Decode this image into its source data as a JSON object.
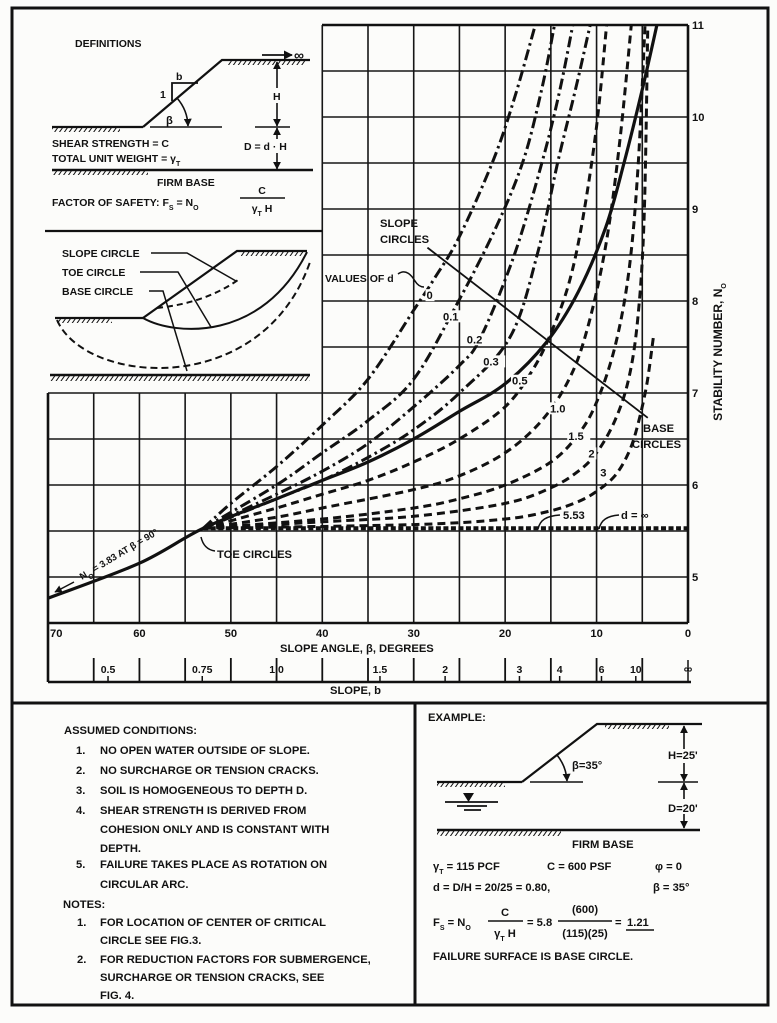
{
  "definitions": {
    "title": "DEFINITIONS",
    "b": "b",
    "one": "1",
    "beta": "β",
    "infinity": "∞",
    "H": "H",
    "depth": "D = d · H",
    "shear_strength": "SHEAR STRENGTH = C",
    "unit_weight": "TOTAL UNIT WEIGHT = γ",
    "unit_weight_sub": "T",
    "firm_base": "FIRM BASE",
    "factor_of_safety": "FACTOR OF SAFETY: F",
    "fs_sub": "S",
    "fs_eq": " = N",
    "n_sub": "O",
    "fraction_num": "C",
    "fraction_den": "γ",
    "fraction_den_sub": "T",
    "fraction_den_tail": " H"
  },
  "circle_types": {
    "slope_circle": "SLOPE CIRCLE",
    "toe_circle": "TOE CIRCLE",
    "base_circle": "BASE CIRCLE"
  },
  "chart_data": {
    "type": "line",
    "xlabel": "SLOPE ANGLE, β, DEGREES",
    "secondary_xlabel": "SLOPE, b",
    "ylabel": "STABILITY NUMBER, N",
    "ylabel_sub": "O",
    "xlim": [
      70,
      0
    ],
    "ylim": [
      4.5,
      11
    ],
    "x_ticks": [
      70,
      60,
      50,
      40,
      30,
      20,
      10,
      0
    ],
    "y_ticks": [
      5,
      6,
      7,
      8,
      9,
      10,
      11
    ],
    "secondary_x_ticks": [
      {
        "label": "0.5",
        "b": 0.5
      },
      {
        "label": "0.75",
        "b": 0.75
      },
      {
        "label": "1.0",
        "b": 1.0
      },
      {
        "label": "1.5",
        "b": 1.5
      },
      {
        "label": "2",
        "b": 2
      },
      {
        "label": "3",
        "b": 3
      },
      {
        "label": "4",
        "b": 4
      },
      {
        "label": "6",
        "b": 6
      },
      {
        "label": "10",
        "b": 10
      },
      {
        "label": "∞",
        "b": null
      }
    ],
    "grid": {
      "on": true,
      "x_step": 5,
      "y_step": 0.5
    },
    "legend_title": "VALUES OF d",
    "series": [
      {
        "name": "Toe circles",
        "label": "",
        "style": "solid",
        "points": [
          [
            70,
            4.77
          ],
          [
            60,
            5.15
          ],
          [
            53,
            5.53
          ],
          [
            45,
            5.85
          ],
          [
            40,
            6.05
          ],
          [
            35,
            6.25
          ],
          [
            30,
            6.5
          ],
          [
            25,
            6.8
          ],
          [
            20,
            7.1
          ],
          [
            15.5,
            7.55
          ],
          [
            12,
            8.1
          ],
          [
            9,
            8.8
          ],
          [
            7,
            9.5
          ],
          [
            5,
            10.3
          ],
          [
            3.4,
            11
          ]
        ]
      },
      {
        "name": "d = 0",
        "label": "0",
        "style": "dashdot",
        "label_at": [
          28.6,
          8.02
        ],
        "points": [
          [
            53,
            5.53
          ],
          [
            50,
            5.8
          ],
          [
            45,
            6.2
          ],
          [
            40,
            6.65
          ],
          [
            35,
            7.15
          ],
          [
            30,
            7.9
          ],
          [
            27.7,
            8.25
          ],
          [
            25,
            8.7
          ],
          [
            21.3,
            9.53
          ],
          [
            19,
            10.2
          ],
          [
            16.7,
            11
          ]
        ]
      },
      {
        "name": "d = 0.1",
        "label": "0.1",
        "style": "dashdot",
        "label_at": [
          26.8,
          7.79
        ],
        "points": [
          [
            53,
            5.53
          ],
          [
            45,
            6.0
          ],
          [
            40,
            6.35
          ],
          [
            35,
            6.7
          ],
          [
            30,
            7.15
          ],
          [
            25.2,
            7.98
          ],
          [
            21,
            8.8
          ],
          [
            18,
            9.53
          ],
          [
            16,
            10.3
          ],
          [
            14.6,
            11
          ]
        ]
      },
      {
        "name": "d = 0.2",
        "label": "0.2",
        "style": "dashdot",
        "label_at": [
          24.2,
          7.54
        ],
        "points": [
          [
            53,
            5.53
          ],
          [
            45,
            5.9
          ],
          [
            40,
            6.15
          ],
          [
            35,
            6.45
          ],
          [
            30,
            6.85
          ],
          [
            25,
            7.3
          ],
          [
            22.7,
            7.6
          ],
          [
            19,
            8.5
          ],
          [
            15.9,
            9.53
          ],
          [
            14,
            10.3
          ],
          [
            12.6,
            11
          ]
        ]
      },
      {
        "name": "d = 0.3",
        "label": "0.3",
        "style": "dashdot",
        "label_at": [
          22.4,
          7.3
        ],
        "points": [
          [
            53,
            5.53
          ],
          [
            45,
            5.85
          ],
          [
            40,
            6.05
          ],
          [
            35,
            6.3
          ],
          [
            30,
            6.6
          ],
          [
            25,
            7.0
          ],
          [
            19.5,
            7.6
          ],
          [
            16.5,
            8.5
          ],
          [
            14.2,
            9.53
          ],
          [
            12.3,
            10.3
          ],
          [
            10.7,
            11
          ]
        ]
      },
      {
        "name": "d = 0.5",
        "label": "0.5",
        "style": "dashed",
        "label_at": [
          19.25,
          7.09
        ],
        "points": [
          [
            53,
            5.53
          ],
          [
            45,
            5.75
          ],
          [
            40,
            5.9
          ],
          [
            35,
            6.05
          ],
          [
            30,
            6.25
          ],
          [
            25,
            6.5
          ],
          [
            20,
            6.85
          ],
          [
            17,
            7.25
          ],
          [
            15,
            7.65
          ],
          [
            13,
            8.2
          ],
          [
            11.5,
            8.9
          ],
          [
            10,
            9.9
          ],
          [
            8.9,
            11
          ]
        ]
      },
      {
        "name": "d = 1.0",
        "label": "1.0",
        "style": "dashed",
        "label_at": [
          15.1,
          6.79
        ],
        "points": [
          [
            53,
            5.53
          ],
          [
            45,
            5.65
          ],
          [
            40,
            5.75
          ],
          [
            30,
            5.95
          ],
          [
            25,
            6.1
          ],
          [
            20,
            6.35
          ],
          [
            16,
            6.7
          ],
          [
            13,
            7.15
          ],
          [
            11,
            7.7
          ],
          [
            9,
            8.6
          ],
          [
            7.5,
            9.7
          ],
          [
            6.2,
            11
          ]
        ]
      },
      {
        "name": "d = 1.5",
        "label": "1.5",
        "style": "dashed",
        "label_at": [
          13.1,
          6.49
        ],
        "points": [
          [
            53,
            5.53
          ],
          [
            40,
            5.63
          ],
          [
            30,
            5.75
          ],
          [
            25,
            5.85
          ],
          [
            20,
            6.0
          ],
          [
            15,
            6.25
          ],
          [
            12,
            6.55
          ],
          [
            10,
            6.9
          ],
          [
            8,
            7.5
          ],
          [
            6.5,
            8.3
          ],
          [
            5.5,
            9.4
          ],
          [
            4.7,
            11
          ]
        ]
      },
      {
        "name": "d = 2",
        "label": "2",
        "style": "dashed",
        "label_at": [
          10.9,
          6.3
        ],
        "points": [
          [
            53,
            5.53
          ],
          [
            40,
            5.6
          ],
          [
            30,
            5.66
          ],
          [
            20,
            5.8
          ],
          [
            15,
            5.97
          ],
          [
            12,
            6.15
          ],
          [
            10,
            6.35
          ],
          [
            8,
            6.7
          ],
          [
            6.5,
            7.15
          ],
          [
            5.5,
            7.8
          ],
          [
            4.8,
            8.9
          ],
          [
            4.4,
            11
          ]
        ]
      },
      {
        "name": "d = 3",
        "label": "3",
        "style": "dashed",
        "label_at": [
          9.6,
          6.09
        ],
        "points": [
          [
            53,
            5.53
          ],
          [
            30,
            5.57
          ],
          [
            20,
            5.63
          ],
          [
            15,
            5.72
          ],
          [
            12,
            5.82
          ],
          [
            10,
            5.93
          ],
          [
            8,
            6.1
          ],
          [
            6.5,
            6.35
          ],
          [
            5.5,
            6.65
          ],
          [
            4.5,
            7.1
          ],
          [
            3.8,
            7.6
          ]
        ]
      },
      {
        "name": "d = ∞",
        "label": "",
        "style": "infinity",
        "points": [
          [
            53,
            5.53
          ],
          [
            0,
            5.53
          ]
        ]
      }
    ],
    "annotations": {
      "slope_circles": [
        "SLOPE",
        "CIRCLES"
      ],
      "base_circles": [
        "BASE",
        "CIRCLES"
      ],
      "toe_circles": "TOE CIRCLES",
      "n0_note": {
        "a": "N",
        "sub": "O",
        "b": " = 3.83 AT β = 90°"
      },
      "toe_value": "5.53",
      "d_infinity": "d = ∞",
      "slope_base_boundary": {
        "from": [
          28.5,
          8.58
        ],
        "to": [
          4.4,
          6.73
        ]
      }
    }
  },
  "conditions": {
    "title": "ASSUMED CONDITIONS:",
    "items": [
      {
        "num": "1.",
        "lines": [
          "NO OPEN WATER OUTSIDE OF SLOPE."
        ]
      },
      {
        "num": "2.",
        "lines": [
          "NO SURCHARGE OR TENSION CRACKS."
        ]
      },
      {
        "num": "3.",
        "lines": [
          "SOIL IS HOMOGENEOUS TO DEPTH D."
        ]
      },
      {
        "num": "4.",
        "lines": [
          "SHEAR STRENGTH IS DERIVED FROM",
          "COHESION ONLY AND IS CONSTANT WITH",
          "DEPTH."
        ]
      },
      {
        "num": "5.",
        "lines": [
          "FAILURE TAKES PLACE AS ROTATION ON",
          "CIRCULAR ARC."
        ]
      }
    ]
  },
  "notes": {
    "title": "NOTES:",
    "items": [
      {
        "num": "1.",
        "lines": [
          "FOR LOCATION OF CENTER OF CRITICAL",
          "CIRCLE SEE FIG.3."
        ]
      },
      {
        "num": "2.",
        "lines": [
          "FOR REDUCTION FACTORS FOR SUBMERGENCE,",
          "SURCHARGE OR TENSION CRACKS, SEE",
          "FIG. 4."
        ]
      }
    ]
  },
  "example": {
    "title": "EXAMPLE:",
    "beta_label": "β=35°",
    "H_label": "H=25'",
    "D_label": "D=20'",
    "firm_base": "FIRM BASE",
    "unit_weight": "γ",
    "unit_weight_sub": "T",
    "unit_weight_value": " = 115 PCF",
    "cohesion": "C = 600 PSF",
    "phi": "φ = 0",
    "d_calc": "d = D/H = 20/25 = 0.80,",
    "beta": "β = 35°",
    "fs_label": "F",
    "fs_sub": "S",
    "fs_eq": " = N",
    "n_sub": "O",
    "frac1_num": "C",
    "frac1_den": "γ",
    "frac1_den_sub": "T",
    "frac1_den_tail": " H",
    "n0_value": "= 5.8",
    "frac2_num": "(600)",
    "frac2_den": "(115)(25)",
    "result_eq": "=",
    "result": "1.21",
    "conclusion": "FAILURE SURFACE IS BASE CIRCLE."
  }
}
